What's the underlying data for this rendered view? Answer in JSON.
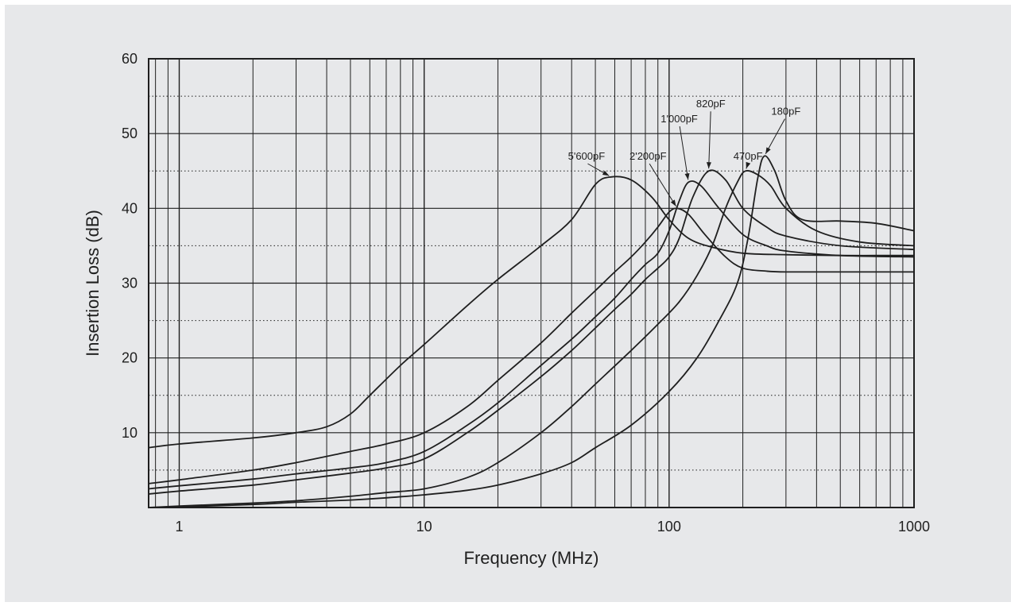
{
  "chart_data": {
    "type": "line",
    "title": "",
    "xlabel": "Frequency (MHz)",
    "ylabel": "Insertion Loss (dB)",
    "x_scale": "log",
    "xlim": [
      0.75,
      1000
    ],
    "ylim": [
      0,
      60
    ],
    "x_ticks": [
      1,
      10,
      100,
      1000
    ],
    "x_tick_labels": [
      "1",
      "10",
      "100",
      "1000"
    ],
    "y_ticks": [
      10,
      20,
      30,
      40,
      50,
      60
    ],
    "y_tick_labels": [
      "10",
      "20",
      "30",
      "40",
      "50",
      "60"
    ],
    "grid": true,
    "legend": "none",
    "line_color": "#1f1f1f",
    "background_color": "#e7e8ea",
    "series": [
      {
        "name": "5'600pF",
        "label_at": [
          46,
          46.5
        ],
        "peak": [
          58,
          44.2
        ],
        "x": [
          0.75,
          1,
          2,
          3,
          4,
          5,
          6,
          8,
          10,
          15,
          20,
          30,
          40,
          50,
          58,
          70,
          85,
          100,
          120,
          150,
          200,
          300,
          500,
          700,
          1000
        ],
        "y": [
          8,
          8.5,
          9.3,
          10,
          10.8,
          12.5,
          15,
          19,
          21.8,
          27,
          30.5,
          35,
          38.5,
          43.2,
          44.2,
          43.8,
          41.5,
          38.5,
          36,
          34.8,
          34,
          33.8,
          33.7,
          33.7,
          33.7
        ]
      },
      {
        "name": "2'200pF",
        "label_at": [
          82,
          46.5
        ],
        "peak": [
          108,
          40
        ],
        "x": [
          0.75,
          1,
          2,
          3,
          5,
          7,
          10,
          15,
          20,
          30,
          40,
          50,
          60,
          70,
          80,
          90,
          100,
          108,
          120,
          140,
          170,
          200,
          250,
          300,
          500,
          1000
        ],
        "y": [
          3.2,
          3.7,
          5,
          6,
          7.5,
          8.5,
          10,
          13.5,
          17,
          22,
          26,
          29,
          31.5,
          33.5,
          35.5,
          37.5,
          39.5,
          40,
          39.2,
          36.5,
          33.5,
          32,
          31.6,
          31.5,
          31.5,
          31.5
        ]
      },
      {
        "name": "1'000pF",
        "label_at": [
          110,
          51.5
        ],
        "peak": [
          120,
          43.5
        ],
        "x": [
          0.75,
          1,
          2,
          3,
          5,
          7,
          10,
          15,
          20,
          30,
          40,
          50,
          60,
          70,
          80,
          90,
          100,
          110,
          120,
          135,
          160,
          200,
          250,
          300,
          500,
          1000
        ],
        "y": [
          2.5,
          2.9,
          3.8,
          4.5,
          5.3,
          6,
          7.5,
          11,
          14,
          19,
          22.5,
          25.5,
          28,
          30.5,
          32.5,
          34,
          37,
          41,
          43.5,
          43,
          40,
          36.5,
          35,
          34.3,
          33.7,
          33.5
        ]
      },
      {
        "name": "820pF",
        "label_at": [
          148,
          53.5
        ],
        "peak": [
          145,
          45
        ],
        "x": [
          0.75,
          1,
          2,
          3,
          5,
          7,
          10,
          15,
          20,
          30,
          40,
          50,
          60,
          70,
          80,
          90,
          100,
          110,
          125,
          145,
          170,
          200,
          250,
          300,
          500,
          1000
        ],
        "y": [
          1.8,
          2.2,
          3,
          3.7,
          4.6,
          5.3,
          6.5,
          10,
          13,
          17.5,
          21,
          24,
          26.5,
          28.5,
          30.5,
          32,
          33.5,
          36,
          41.5,
          45,
          43.8,
          40,
          37.5,
          36.3,
          35,
          34.5
        ]
      },
      {
        "name": "470pF",
        "label_at": [
          210,
          46.5
        ],
        "peak": [
          205,
          45
        ],
        "x": [
          0.75,
          1,
          2,
          3,
          5,
          7,
          10,
          15,
          20,
          30,
          40,
          50,
          70,
          90,
          110,
          130,
          150,
          170,
          190,
          205,
          230,
          260,
          300,
          400,
          600,
          1000
        ],
        "y": [
          0,
          0.2,
          0.6,
          0.9,
          1.5,
          2,
          2.5,
          4,
          6,
          10,
          13.5,
          16.5,
          21,
          24.5,
          27.5,
          31,
          35,
          40,
          43.5,
          45,
          44.5,
          43,
          40,
          37,
          35.5,
          35
        ]
      },
      {
        "name": "180pF",
        "label_at": [
          300,
          52.5
        ],
        "peak": [
          245,
          47
        ],
        "x": [
          0.75,
          1,
          2,
          3,
          5,
          7,
          10,
          15,
          20,
          30,
          40,
          50,
          70,
          100,
          130,
          160,
          190,
          210,
          230,
          245,
          270,
          300,
          350,
          500,
          700,
          1000
        ],
        "y": [
          0,
          0.1,
          0.4,
          0.7,
          1,
          1.3,
          1.7,
          2.3,
          3,
          4.5,
          6,
          8,
          11,
          15.5,
          20,
          25,
          30,
          36,
          44,
          47,
          45,
          41,
          38.5,
          38.3,
          38,
          37
        ]
      }
    ]
  }
}
